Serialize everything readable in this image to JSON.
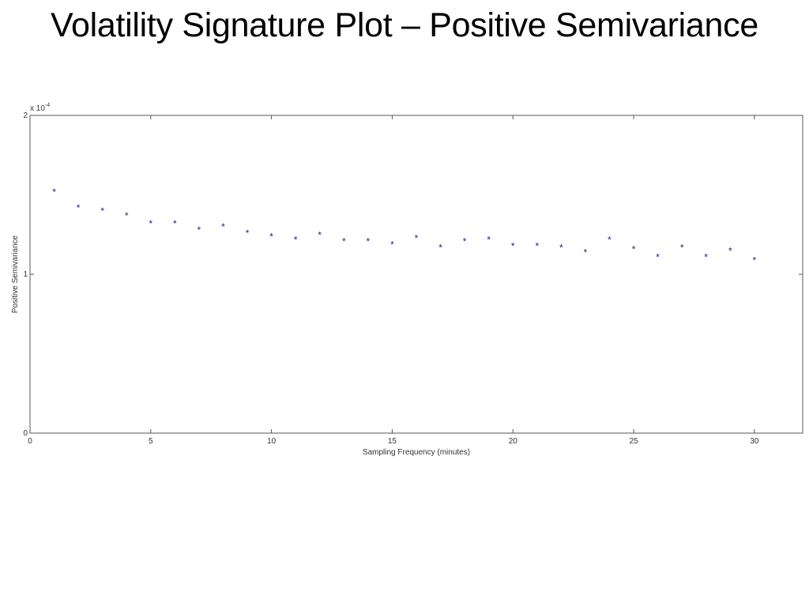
{
  "title": "Volatility Signature Plot – Positive Semivariance",
  "chart_data": {
    "type": "scatter",
    "xlabel": "Sampling Frequency (minutes)",
    "ylabel": "Positive Semivariance",
    "y_multiplier": "x 10",
    "y_exponent": "-4",
    "xlim": [
      0,
      32
    ],
    "ylim": [
      0,
      2
    ],
    "xticks": [
      0,
      5,
      10,
      15,
      20,
      25,
      30
    ],
    "yticks": [
      0,
      1,
      2
    ],
    "marker": "*",
    "marker_color": "#1a1a8c",
    "grid": false,
    "series": [
      {
        "x": [
          1,
          2,
          3,
          4,
          5,
          6,
          7,
          8,
          9,
          10,
          11,
          12,
          13,
          14,
          15,
          16,
          17,
          18,
          19,
          20,
          21,
          22,
          23,
          24,
          25,
          26,
          27,
          28,
          29,
          30
        ],
        "y": [
          1.52,
          1.42,
          1.4,
          1.37,
          1.32,
          1.32,
          1.28,
          1.3,
          1.26,
          1.24,
          1.22,
          1.25,
          1.21,
          1.21,
          1.19,
          1.23,
          1.17,
          1.21,
          1.22,
          1.18,
          1.18,
          1.17,
          1.14,
          1.22,
          1.16,
          1.11,
          1.17,
          1.11,
          1.15,
          1.09
        ]
      }
    ]
  }
}
